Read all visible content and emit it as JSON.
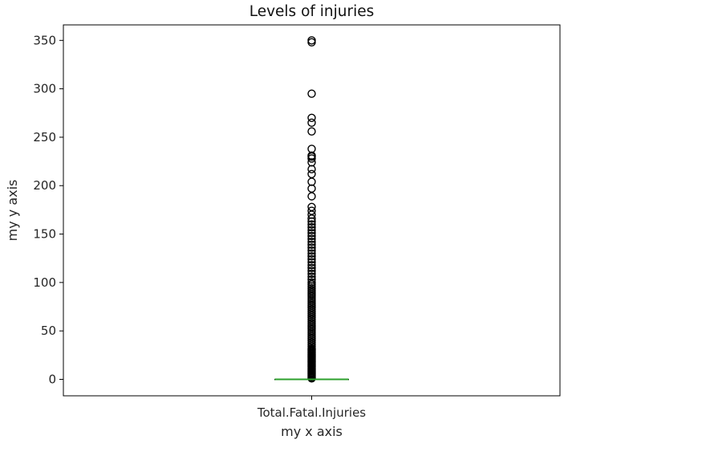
{
  "chart_data": {
    "type": "box",
    "title": "Levels of injuries",
    "xlabel": "my x axis",
    "ylabel": "my y axis",
    "categories": [
      "Total.Fatal.Injuries"
    ],
    "ylim": [
      -17,
      366
    ],
    "yticks": [
      0,
      50,
      100,
      150,
      200,
      250,
      300,
      350
    ],
    "grid": false,
    "legend": "none",
    "box": {
      "min": 0,
      "q1": 0,
      "median": 0,
      "q3": 0,
      "max": 0
    },
    "outliers": [
      1,
      2,
      3,
      4,
      5,
      6,
      7,
      8,
      9,
      10,
      11,
      12,
      13,
      14,
      15,
      16,
      17,
      18,
      19,
      20,
      21,
      22,
      23,
      24,
      25,
      26,
      27,
      28,
      29,
      30,
      31,
      32,
      34,
      36,
      38,
      40,
      42,
      44,
      46,
      48,
      50,
      52,
      54,
      56,
      58,
      60,
      62,
      64,
      66,
      68,
      70,
      72,
      74,
      76,
      78,
      80,
      82,
      84,
      86,
      88,
      90,
      92,
      94,
      96,
      98,
      100,
      103,
      106,
      109,
      112,
      115,
      118,
      121,
      124,
      127,
      130,
      133,
      136,
      139,
      142,
      145,
      148,
      151,
      154,
      157,
      160,
      163,
      166,
      170,
      174,
      178,
      189,
      197,
      204,
      212,
      217,
      224,
      228,
      230,
      231,
      238,
      256,
      265,
      270,
      295,
      348,
      350
    ],
    "colors": {
      "median": "#2ca02c",
      "box": "#000000",
      "outlier": "#000000"
    }
  }
}
